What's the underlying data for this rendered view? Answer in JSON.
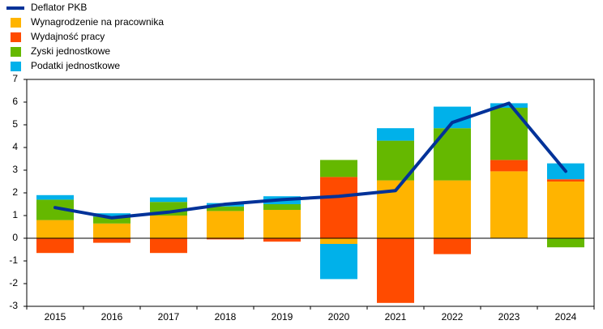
{
  "chart_data": {
    "type": "bar",
    "categories": [
      "2015",
      "2016",
      "2017",
      "2018",
      "2019",
      "2020",
      "2021",
      "2022",
      "2023",
      "2024"
    ],
    "series": [
      {
        "name": "Deflator PKB",
        "type": "line",
        "color": "#003299",
        "values": [
          1.35,
          0.9,
          1.15,
          1.5,
          1.7,
          1.85,
          2.1,
          5.1,
          5.95,
          2.95
        ]
      },
      {
        "name": "Wynagrodzenie na pracownika",
        "color": "#ffb400",
        "values": [
          0.8,
          0.65,
          1.0,
          1.2,
          1.25,
          -0.25,
          2.55,
          2.55,
          2.95,
          2.5
        ]
      },
      {
        "name": "Wydajność pracy",
        "color": "#ff4b00",
        "values": [
          -0.65,
          -0.2,
          -0.65,
          -0.05,
          -0.15,
          2.7,
          -2.85,
          -0.7,
          0.5,
          0.1
        ]
      },
      {
        "name": "Zyski jednostkowe",
        "color": "#65b800",
        "values": [
          0.9,
          0.3,
          0.6,
          0.2,
          0.25,
          0.75,
          1.75,
          2.3,
          2.3,
          -0.4
        ]
      },
      {
        "name": "Podatki jednostkowe",
        "color": "#00b1ea",
        "values": [
          0.2,
          0.15,
          0.2,
          0.15,
          0.35,
          -1.55,
          0.55,
          0.95,
          0.2,
          0.7
        ]
      }
    ],
    "stacked": true,
    "ylim": [
      -3,
      7
    ],
    "yticks": [
      -3,
      -2,
      -1,
      0,
      1,
      2,
      3,
      4,
      5,
      6,
      7
    ],
    "grid": false,
    "legend": "top-left"
  }
}
